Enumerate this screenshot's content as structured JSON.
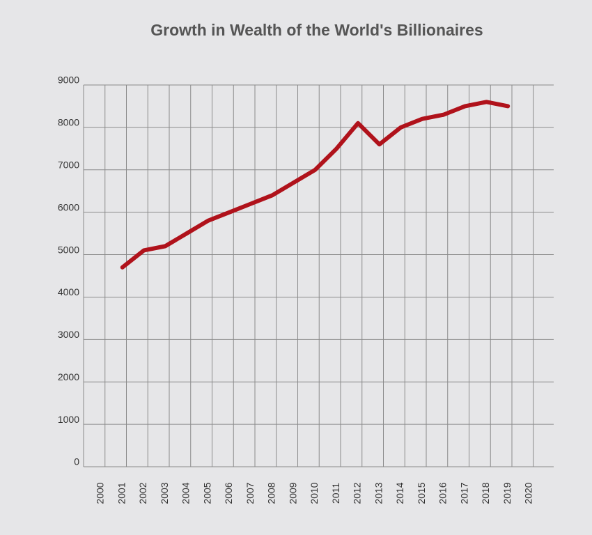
{
  "chart_data": {
    "type": "line",
    "title": "Growth in Wealth of the World's Billionaires",
    "categories": [
      "2000",
      "2001",
      "2002",
      "2003",
      "2004",
      "2005",
      "2006",
      "2007",
      "2008",
      "2009",
      "2010",
      "2011",
      "2012",
      "2013",
      "2014",
      "2015",
      "2016",
      "2017",
      "2018",
      "2019",
      "2020"
    ],
    "series": [
      {
        "color": "#b0121b",
        "values": [
          null,
          4700,
          5100,
          5200,
          5500,
          5800,
          6000,
          6200,
          6400,
          6700,
          7000,
          7500,
          8100,
          7600,
          8000,
          8200,
          8300,
          8500,
          8600,
          8500,
          null
        ]
      }
    ],
    "ylim": [
      0,
      9000
    ],
    "yticks": [
      0,
      1000,
      2000,
      3000,
      4000,
      5000,
      6000,
      7000,
      8000,
      9000
    ],
    "grid": true
  }
}
